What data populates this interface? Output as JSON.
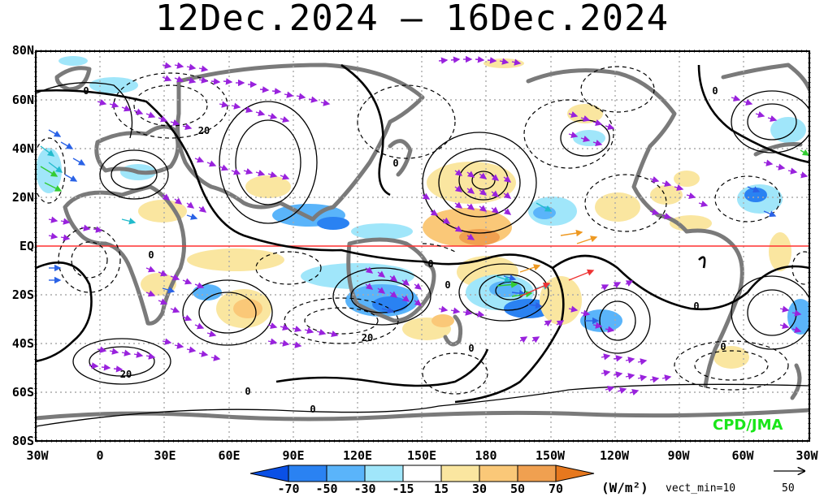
{
  "title": "12Dec.2024 – 16Dec.2024",
  "lat_labels": [
    "80N",
    "60N",
    "40N",
    "20N",
    "EQ",
    "20S",
    "40S",
    "60S",
    "80S"
  ],
  "lon_labels": [
    "30W",
    "0",
    "30E",
    "60E",
    "90E",
    "120E",
    "150E",
    "180",
    "150W",
    "120W",
    "90W",
    "60W",
    "30W"
  ],
  "colorbar": {
    "levels": [
      "-70",
      "-50",
      "-30",
      "-15",
      "15",
      "30",
      "50",
      "70"
    ],
    "colors": [
      "#0a50e6",
      "#2a82f2",
      "#5ab4fa",
      "#a0e6fa",
      "#ffffff",
      "#fae6a0",
      "#fac878",
      "#f0a050",
      "#e6781e"
    ],
    "units": "(W/m²)",
    "vector_note": "vect_min=10"
  },
  "reference_vector": {
    "value": "50"
  },
  "credit": "CPD/JMA",
  "contour_labels": [
    "0",
    "0",
    "20",
    "0",
    "0",
    "0",
    "0",
    "0",
    "0",
    "20",
    "0",
    "0",
    "20",
    "0"
  ],
  "colors": {
    "coast": "#7a7a7a",
    "equator": "#ff3030",
    "vector_main": "#9922dd",
    "credit": "#19e619"
  }
}
